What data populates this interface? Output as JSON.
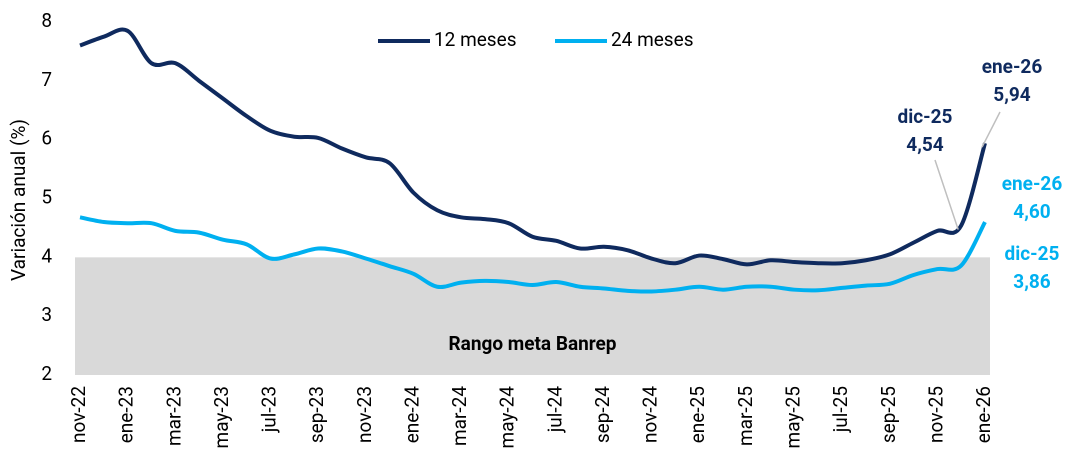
{
  "chart_data": {
    "type": "line",
    "y_label": "Variación anual (%)",
    "categories": [
      "nov-22",
      null,
      "ene-23",
      null,
      "mar-23",
      null,
      "may-23",
      null,
      "jul-23",
      null,
      "sep-23",
      null,
      "nov-23",
      null,
      "ene-24",
      null,
      "mar-24",
      null,
      "may-24",
      null,
      "jul-24",
      null,
      "sep-24",
      null,
      "nov-24",
      null,
      "ene-25",
      null,
      "mar-25",
      null,
      "may-25",
      null,
      "jul-25",
      null,
      "sep-25",
      null,
      "nov-25",
      null,
      "ene-26"
    ],
    "series": [
      {
        "name": "12 meses",
        "color": "#0f2a5e",
        "values": [
          7.6,
          7.75,
          7.85,
          7.3,
          7.3,
          7.0,
          6.7,
          6.4,
          6.15,
          6.05,
          6.03,
          5.85,
          5.7,
          5.6,
          5.1,
          4.8,
          4.68,
          4.65,
          4.58,
          4.35,
          4.28,
          4.15,
          4.18,
          4.12,
          3.98,
          3.9,
          4.03,
          3.97,
          3.88,
          3.95,
          3.92,
          3.9,
          3.9,
          3.95,
          4.05,
          4.25,
          4.45,
          4.54,
          5.94
        ],
        "value_labels": [
          null,
          null,
          null,
          null,
          null,
          null,
          null,
          null,
          null,
          null,
          null,
          null,
          null,
          null,
          null,
          null,
          null,
          null,
          null,
          null,
          null,
          null,
          null,
          null,
          null,
          null,
          null,
          null,
          null,
          null,
          null,
          null,
          null,
          null,
          null,
          null,
          null,
          "4,54",
          "5,94"
        ],
        "point_labels": [
          null,
          null,
          null,
          null,
          null,
          null,
          null,
          null,
          null,
          null,
          null,
          null,
          null,
          null,
          null,
          null,
          null,
          null,
          null,
          null,
          null,
          null,
          null,
          null,
          null,
          null,
          null,
          null,
          null,
          null,
          null,
          null,
          null,
          null,
          null,
          null,
          null,
          "dic-25",
          "ene-26"
        ]
      },
      {
        "name": "24 meses",
        "color": "#00b0f0",
        "values": [
          4.68,
          4.6,
          4.58,
          4.58,
          4.45,
          4.42,
          4.3,
          4.22,
          3.98,
          4.05,
          4.15,
          4.1,
          3.98,
          3.85,
          3.72,
          3.5,
          3.57,
          3.6,
          3.58,
          3.53,
          3.58,
          3.5,
          3.47,
          3.43,
          3.42,
          3.45,
          3.5,
          3.45,
          3.5,
          3.5,
          3.45,
          3.44,
          3.48,
          3.52,
          3.55,
          3.7,
          3.8,
          3.86,
          4.6
        ],
        "value_labels": [
          null,
          null,
          null,
          null,
          null,
          null,
          null,
          null,
          null,
          null,
          null,
          null,
          null,
          null,
          null,
          null,
          null,
          null,
          null,
          null,
          null,
          null,
          null,
          null,
          null,
          null,
          null,
          null,
          null,
          null,
          null,
          null,
          null,
          null,
          null,
          null,
          null,
          "3,86",
          "4,60"
        ],
        "point_labels": [
          null,
          null,
          null,
          null,
          null,
          null,
          null,
          null,
          null,
          null,
          null,
          null,
          null,
          null,
          null,
          null,
          null,
          null,
          null,
          null,
          null,
          null,
          null,
          null,
          null,
          null,
          null,
          null,
          null,
          null,
          null,
          null,
          null,
          null,
          null,
          null,
          null,
          "dic-25",
          "ene-26"
        ]
      }
    ],
    "band": {
      "label": "Rango meta Banrep",
      "range": [
        2,
        4
      ],
      "color": "#d9d9d9"
    },
    "ylim": [
      2,
      8
    ],
    "yticks": [
      2,
      3,
      4,
      5,
      6,
      7,
      8
    ],
    "legend": "top"
  }
}
